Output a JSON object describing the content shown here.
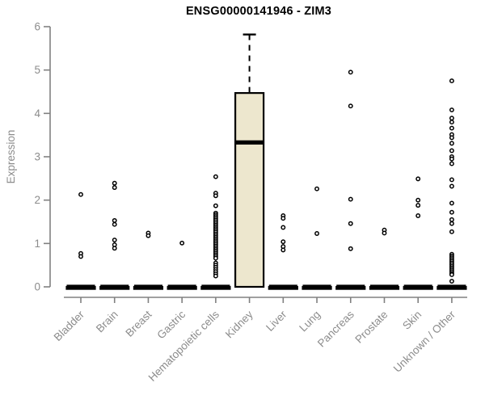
{
  "window": {
    "title": "ENSG00000141946 - ZIM3"
  },
  "chart_data": {
    "type": "boxplot",
    "title": "ENSG00000141946 - ZIM3",
    "ylabel": "Expression",
    "xlabel": "",
    "ylim": [
      0,
      6
    ],
    "yticks": [
      0,
      1,
      2,
      3,
      4,
      5,
      6
    ],
    "grid": false,
    "legend": "none",
    "box_fill": "#ede7ce",
    "axis_color": "#808080",
    "label_color": "#8c8c8c",
    "box_stroke": "#000000",
    "outlier_style": "open-circle",
    "categories": [
      {
        "label": "Bladder",
        "stats": {
          "low": 0,
          "q1": 0,
          "med": 0,
          "q3": 0,
          "high": 0
        },
        "outliers": [
          2.13,
          0.77,
          0.7
        ]
      },
      {
        "label": "Brain",
        "stats": {
          "low": 0,
          "q1": 0,
          "med": 0,
          "q3": 0,
          "high": 0
        },
        "outliers": [
          2.39,
          2.29,
          1.53,
          1.44,
          1.08,
          0.97,
          0.89
        ]
      },
      {
        "label": "Breast",
        "stats": {
          "low": 0,
          "q1": 0,
          "med": 0,
          "q3": 0,
          "high": 0
        },
        "outliers": [
          1.24,
          1.18
        ]
      },
      {
        "label": "Gastric",
        "stats": {
          "low": 0,
          "q1": 0,
          "med": 0,
          "q3": 0,
          "high": 0
        },
        "outliers": [
          1.01
        ]
      },
      {
        "label": "Hematopoietic cells",
        "stats": {
          "low": 0,
          "q1": 0,
          "med": 0,
          "q3": 0,
          "high": 0
        },
        "outliers": [
          2.54,
          2.16,
          2.1,
          1.87,
          1.7,
          1.66,
          1.62,
          1.58,
          1.54,
          1.5,
          1.46,
          1.42,
          1.38,
          1.34,
          1.3,
          1.26,
          1.22,
          1.18,
          1.14,
          1.1,
          1.06,
          1.02,
          0.98,
          0.94,
          0.9,
          0.86,
          0.82,
          0.78,
          0.74,
          0.7,
          0.66,
          0.55,
          0.5,
          0.45,
          0.4,
          0.35,
          0.3,
          0.25
        ]
      },
      {
        "label": "Kidney",
        "stats": {
          "low": 0,
          "q1": 0,
          "med": 3.33,
          "q3": 4.47,
          "high": 5.82
        },
        "outliers": []
      },
      {
        "label": "Liver",
        "stats": {
          "low": 0,
          "q1": 0,
          "med": 0,
          "q3": 0,
          "high": 0
        },
        "outliers": [
          1.64,
          1.58,
          1.37,
          1.04,
          0.93,
          0.85
        ]
      },
      {
        "label": "Lung",
        "stats": {
          "low": 0,
          "q1": 0,
          "med": 0,
          "q3": 0,
          "high": 0
        },
        "outliers": [
          2.26,
          1.23
        ]
      },
      {
        "label": "Pancreas",
        "stats": {
          "low": 0,
          "q1": 0,
          "med": 0,
          "q3": 0,
          "high": 0
        },
        "outliers": [
          4.95,
          4.17,
          2.02,
          1.46,
          0.88
        ]
      },
      {
        "label": "Prostate",
        "stats": {
          "low": 0,
          "q1": 0,
          "med": 0,
          "q3": 0,
          "high": 0
        },
        "outliers": [
          1.31,
          1.24
        ]
      },
      {
        "label": "Skin",
        "stats": {
          "low": 0,
          "q1": 0,
          "med": 0,
          "q3": 0,
          "high": 0
        },
        "outliers": [
          2.49,
          2.0,
          1.88,
          1.64
        ]
      },
      {
        "label": "Unknown / Other",
        "stats": {
          "low": 0,
          "q1": 0,
          "med": 0,
          "q3": 0,
          "high": 0
        },
        "outliers": [
          4.75,
          4.08,
          3.89,
          3.8,
          3.66,
          3.51,
          3.44,
          3.31,
          3.14,
          3.0,
          2.95,
          2.84,
          2.47,
          2.32,
          1.93,
          1.72,
          1.55,
          1.46,
          1.27,
          0.75,
          0.71,
          0.67,
          0.63,
          0.59,
          0.55,
          0.51,
          0.47,
          0.43,
          0.39,
          0.35,
          0.31,
          0.28,
          0.13
        ]
      }
    ]
  }
}
